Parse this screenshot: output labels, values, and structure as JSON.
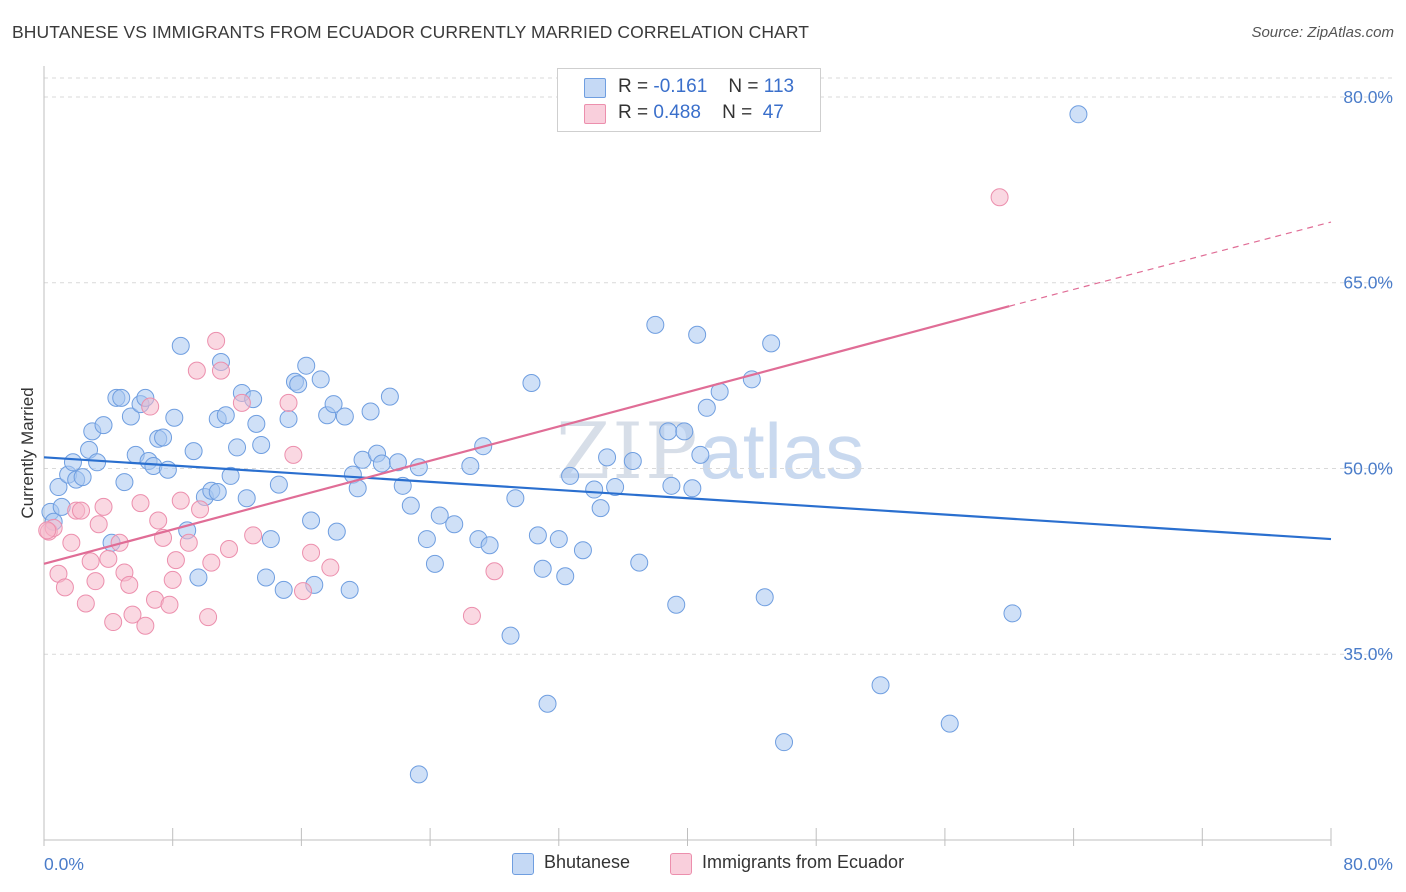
{
  "title": "BHUTANESE VS IMMIGRANTS FROM ECUADOR CURRENTLY MARRIED CORRELATION CHART",
  "source": "Source: ZipAtlas.com",
  "watermark": {
    "zip": "ZIP",
    "atlas": "atlas"
  },
  "legend": {
    "rows": [
      {
        "r_label": "R =",
        "r_value": "-0.161",
        "n_label": "N =",
        "n_value": "113",
        "color": "#a8c6f0"
      },
      {
        "r_label": "R =",
        "r_value": "0.488",
        "n_label": "N =",
        "n_value": "47",
        "color": "#f6b8ca"
      }
    ]
  },
  "bottom_legend": [
    "Bhutanese",
    "Immigrants from Ecuador"
  ],
  "chart_data": {
    "type": "scatter",
    "title": "BHUTANESE VS IMMIGRANTS FROM ECUADOR CURRENTLY MARRIED CORRELATION CHART",
    "ylabel": "Currently Married",
    "xlim": [
      0,
      80
    ],
    "ylim": [
      20,
      82.5
    ],
    "x_tick_labels": [
      "0.0%",
      "80.0%"
    ],
    "y_ticks": [
      35,
      50,
      65,
      80
    ],
    "y_tick_labels": [
      "35.0%",
      "50.0%",
      "65.0%",
      "80.0%"
    ],
    "grid": true,
    "legend_position": "top-center",
    "series": [
      {
        "name": "Bhutanese",
        "color": "#a8c6f0",
        "stroke": "#6f9ee0",
        "trend": {
          "x": [
            0,
            80
          ],
          "y": [
            50.9,
            44.3
          ],
          "color": "#2a6fcf"
        },
        "points": [
          [
            0.4,
            46.5
          ],
          [
            0.6,
            45.7
          ],
          [
            0.9,
            48.5
          ],
          [
            1.1,
            46.9
          ],
          [
            1.5,
            49.5
          ],
          [
            1.8,
            50.5
          ],
          [
            2.0,
            49.1
          ],
          [
            2.4,
            49.3
          ],
          [
            2.8,
            51.5
          ],
          [
            3.0,
            53.0
          ],
          [
            3.3,
            50.5
          ],
          [
            3.7,
            53.5
          ],
          [
            4.2,
            44.0
          ],
          [
            4.5,
            55.7
          ],
          [
            4.8,
            55.7
          ],
          [
            5.0,
            48.9
          ],
          [
            5.4,
            54.2
          ],
          [
            5.7,
            51.1
          ],
          [
            6.0,
            55.2
          ],
          [
            6.3,
            55.7
          ],
          [
            6.5,
            50.6
          ],
          [
            6.8,
            50.2
          ],
          [
            7.1,
            52.4
          ],
          [
            7.4,
            52.5
          ],
          [
            7.7,
            49.9
          ],
          [
            8.1,
            54.1
          ],
          [
            8.5,
            59.9
          ],
          [
            8.9,
            45.0
          ],
          [
            9.3,
            51.4
          ],
          [
            9.6,
            41.2
          ],
          [
            10.0,
            47.7
          ],
          [
            10.4,
            48.2
          ],
          [
            10.8,
            54.0
          ],
          [
            11.0,
            58.6
          ],
          [
            11.3,
            54.3
          ],
          [
            11.6,
            49.4
          ],
          [
            12.0,
            51.7
          ],
          [
            12.3,
            56.1
          ],
          [
            12.6,
            47.6
          ],
          [
            13.0,
            55.6
          ],
          [
            13.2,
            53.6
          ],
          [
            13.5,
            51.9
          ],
          [
            13.8,
            41.2
          ],
          [
            14.1,
            44.3
          ],
          [
            14.6,
            48.7
          ],
          [
            14.9,
            40.2
          ],
          [
            15.2,
            54.0
          ],
          [
            15.6,
            57.0
          ],
          [
            15.8,
            56.8
          ],
          [
            16.3,
            58.3
          ],
          [
            16.6,
            45.8
          ],
          [
            16.8,
            40.6
          ],
          [
            17.2,
            57.2
          ],
          [
            17.6,
            54.3
          ],
          [
            18.0,
            55.2
          ],
          [
            18.2,
            44.9
          ],
          [
            18.7,
            54.2
          ],
          [
            19.0,
            40.2
          ],
          [
            19.2,
            49.5
          ],
          [
            19.5,
            48.4
          ],
          [
            19.8,
            50.7
          ],
          [
            20.3,
            54.6
          ],
          [
            20.7,
            51.2
          ],
          [
            21.0,
            50.4
          ],
          [
            21.5,
            55.8
          ],
          [
            22.0,
            50.5
          ],
          [
            22.3,
            48.6
          ],
          [
            22.8,
            47.0
          ],
          [
            23.3,
            50.1
          ],
          [
            23.8,
            44.3
          ],
          [
            24.3,
            42.3
          ],
          [
            24.6,
            46.2
          ],
          [
            25.5,
            45.5
          ],
          [
            26.5,
            50.2
          ],
          [
            27.0,
            44.3
          ],
          [
            27.3,
            51.8
          ],
          [
            27.7,
            43.8
          ],
          [
            29.0,
            36.5
          ],
          [
            29.3,
            47.6
          ],
          [
            30.3,
            56.9
          ],
          [
            30.7,
            44.6
          ],
          [
            31.0,
            41.9
          ],
          [
            31.3,
            31.0
          ],
          [
            32.0,
            44.3
          ],
          [
            32.4,
            41.3
          ],
          [
            32.7,
            49.4
          ],
          [
            33.5,
            43.4
          ],
          [
            34.2,
            48.3
          ],
          [
            34.6,
            46.8
          ],
          [
            35.0,
            50.9
          ],
          [
            35.5,
            48.5
          ],
          [
            36.6,
            50.6
          ],
          [
            37.0,
            42.4
          ],
          [
            38.0,
            61.6
          ],
          [
            38.8,
            53.0
          ],
          [
            39.0,
            48.6
          ],
          [
            39.3,
            39.0
          ],
          [
            39.8,
            53.0
          ],
          [
            40.3,
            48.4
          ],
          [
            40.6,
            60.8
          ],
          [
            40.8,
            51.1
          ],
          [
            41.2,
            54.9
          ],
          [
            42.0,
            56.2
          ],
          [
            44.0,
            57.2
          ],
          [
            44.8,
            39.6
          ],
          [
            45.2,
            60.1
          ],
          [
            46.0,
            27.9
          ],
          [
            52.0,
            32.5
          ],
          [
            56.3,
            29.4
          ],
          [
            60.2,
            38.3
          ],
          [
            64.3,
            78.6
          ],
          [
            23.3,
            25.3
          ],
          [
            10.8,
            48.1
          ]
        ]
      },
      {
        "name": "Immigrants from Ecuador",
        "color": "#f6b8ca",
        "stroke": "#ec8fad",
        "trend": {
          "x": [
            0,
            60
          ],
          "y": [
            42.3,
            63.1
          ],
          "dash_to": {
            "x": 80,
            "y": 69.9
          },
          "color": "#e06d96"
        },
        "points": [
          [
            0.3,
            44.9
          ],
          [
            0.6,
            45.2
          ],
          [
            0.9,
            41.5
          ],
          [
            1.3,
            40.4
          ],
          [
            1.7,
            44.0
          ],
          [
            2.0,
            46.6
          ],
          [
            2.3,
            46.6
          ],
          [
            2.6,
            39.1
          ],
          [
            2.9,
            42.5
          ],
          [
            3.2,
            40.9
          ],
          [
            3.4,
            45.5
          ],
          [
            3.7,
            46.9
          ],
          [
            4.0,
            42.7
          ],
          [
            4.3,
            37.6
          ],
          [
            4.7,
            44.0
          ],
          [
            5.0,
            41.6
          ],
          [
            5.3,
            40.6
          ],
          [
            5.5,
            38.2
          ],
          [
            6.0,
            47.2
          ],
          [
            6.3,
            37.3
          ],
          [
            6.6,
            55.0
          ],
          [
            6.9,
            39.4
          ],
          [
            7.1,
            45.8
          ],
          [
            7.4,
            44.4
          ],
          [
            7.8,
            39.0
          ],
          [
            8.0,
            41.0
          ],
          [
            8.2,
            42.6
          ],
          [
            8.5,
            47.4
          ],
          [
            9.0,
            44.0
          ],
          [
            9.5,
            57.9
          ],
          [
            9.7,
            46.7
          ],
          [
            10.2,
            38.0
          ],
          [
            10.4,
            42.4
          ],
          [
            10.7,
            60.3
          ],
          [
            11.0,
            57.9
          ],
          [
            11.5,
            43.5
          ],
          [
            12.3,
            55.3
          ],
          [
            13.0,
            44.6
          ],
          [
            15.2,
            55.3
          ],
          [
            15.5,
            51.1
          ],
          [
            16.1,
            40.1
          ],
          [
            16.6,
            43.2
          ],
          [
            17.8,
            42.0
          ],
          [
            26.6,
            38.1
          ],
          [
            28.0,
            41.7
          ],
          [
            59.4,
            71.9
          ],
          [
            0.2,
            45.0
          ]
        ]
      }
    ]
  }
}
